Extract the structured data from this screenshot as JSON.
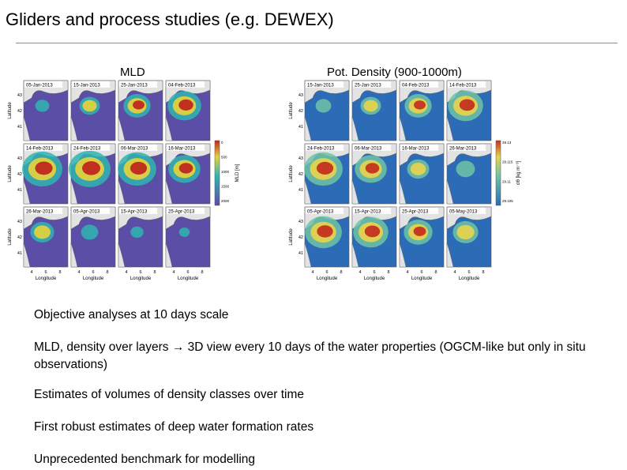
{
  "slide": {
    "title": "Gliders and process studies (e.g. DEWEX)",
    "left_panel_label": "MLD",
    "right_panel_label": "Pot. Density (900-1000m)",
    "bullets": [
      "Objective analyses at 10 days scale",
      "MLD, density over layers → 3D view every 10 days of the water properties (OGCM-like but only in situ observations)",
      "Estimates of volumes of density classes over time",
      "First robust estimates of deep water formation rates",
      "Unprecedented benchmark for modelling"
    ]
  },
  "mld_figure": {
    "panel_dates": [
      "05-Jan-2013",
      "15-Jan-2013",
      "25-Jan-2013",
      "04-Feb-2013",
      "14-Feb-2013",
      "24-Feb-2013",
      "06-Mar-2013",
      "16-Mar-2013",
      "26-Mar-2013",
      "05-Apr-2013",
      "15-Apr-2013",
      "25-Apr-2013"
    ],
    "intensity": [
      0.15,
      0.35,
      0.55,
      0.75,
      0.95,
      1.0,
      0.9,
      0.7,
      0.45,
      0.25,
      0.12,
      0.05
    ],
    "ylabel": "Latitude",
    "xlabel": "Longitude",
    "x_ticks": [
      "4",
      "6",
      "8"
    ],
    "y_ticks": [
      "43",
      "42",
      "41"
    ],
    "colorbar_label": "MLD [m]",
    "colorbar_ticks": [
      "0",
      "500",
      "1000",
      "1500",
      "2000"
    ],
    "colors": {
      "low": "#5a4ea6",
      "mid": "#2fb5b0",
      "high": "#e8d33a",
      "max": "#c0261e"
    }
  },
  "density_figure": {
    "panel_dates": [
      "15-Jan-2013",
      "25-Jan-2013",
      "04-Feb-2013",
      "14-Feb-2013",
      "24-Feb-2013",
      "06-Mar-2013",
      "16-Mar-2013",
      "26-Mar-2013",
      "05-Apr-2013",
      "15-Apr-2013",
      "25-Apr-2013",
      "05-May-2013"
    ],
    "intensity": [
      0.2,
      0.35,
      0.55,
      0.8,
      0.9,
      0.7,
      0.4,
      0.3,
      0.85,
      0.8,
      0.6,
      0.5
    ],
    "ylabel": "Latitude",
    "xlabel": "Longitude",
    "x_ticks": [
      "4",
      "6",
      "8"
    ],
    "y_ticks": [
      "43",
      "42",
      "41"
    ],
    "colorbar_label": "σθ [kg m⁻³]",
    "colorbar_ticks": [
      "29.13",
      "29.115",
      "29.11",
      "29.105"
    ],
    "colors": {
      "low": "#2c6bb5",
      "mid": "#6fc3a6",
      "high": "#e9d44a",
      "max": "#c4321f"
    }
  }
}
